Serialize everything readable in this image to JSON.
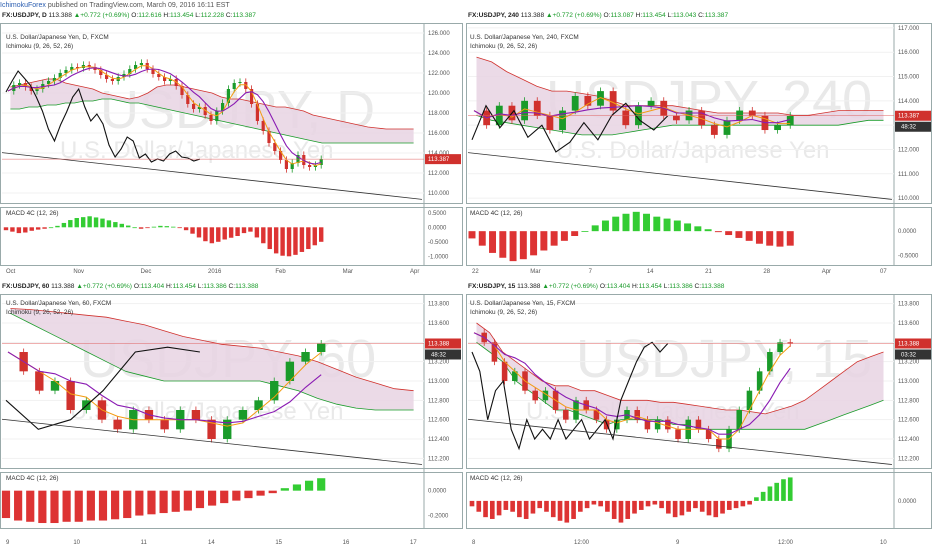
{
  "header": {
    "author": "IchimokuForex",
    "published_text": "published on TradingView.com, March 09, 2016 16:11 EST"
  },
  "colors": {
    "bull": "#1a9b2a",
    "bear": "#d0312d",
    "cloud_fill": "#e7d3e3",
    "kijun": "#8a1bb3",
    "tenkan": "#f39c12",
    "chikou": "#111111",
    "spanA": "#1a9b2a",
    "spanB": "#d0312d",
    "macd_up": "#3c3",
    "macd_down": "#d33",
    "price_line": "#e06060"
  },
  "panels": [
    {
      "id": "daily",
      "header": {
        "symbol": "FX:USDJPY, D",
        "last": "113.388",
        "change": "+0.772 (+0.69%)",
        "o_label": "O:",
        "o": "112.616",
        "h_label": "H:",
        "h": "113.454",
        "l_label": "L:",
        "l": "112.228",
        "c_label": "C:",
        "c": "113.387"
      },
      "title": "U.S. Dollar/Japanese Yen, D, FXCM",
      "indicator": "Ichimoku (9, 26, 52, 26)",
      "watermark_big": "USDJPY, D",
      "watermark_small": "U.S. Dollar/Japanese Yen",
      "macd_label": "MACD 4C (12, 26)",
      "price_ticks": [
        "126.000",
        "124.000",
        "122.000",
        "120.000",
        "118.000",
        "116.000",
        "114.000",
        "112.000",
        "110.000"
      ],
      "last_price_label": "113.387",
      "macd_ticks": [
        "0.5000",
        "0.0000",
        "-0.5000",
        "-1.0000"
      ],
      "time_ticks": [
        "Oct",
        "Nov",
        "Dec",
        "2016",
        "Feb",
        "Mar",
        "Apr"
      ]
    },
    {
      "id": "h4",
      "header": {
        "symbol": "FX:USDJPY, 240",
        "last": "113.388",
        "change": "+0.772 (+0.69%)",
        "o_label": "O:",
        "o": "113.087",
        "h_label": "H:",
        "h": "113.454",
        "l_label": "L:",
        "l": "113.043",
        "c_label": "C:",
        "c": "113.387"
      },
      "title": "U.S. Dollar/Japanese Yen, 240, FXCM",
      "indicator": "Ichimoku (9, 26, 52, 26)",
      "watermark_big": "USDJPY, 240",
      "watermark_small": "U.S. Dollar/Japanese Yen",
      "macd_label": "MACD 4C (12, 26)",
      "price_ticks": [
        "117.000",
        "116.000",
        "115.000",
        "114.000",
        "113.000",
        "112.000",
        "111.000",
        "110.000"
      ],
      "last_price_label": "113.387",
      "countdown_label": "48:32",
      "macd_ticks": [
        "0.0000",
        "-0.5000"
      ],
      "time_ticks": [
        "22",
        "Mar",
        "7",
        "14",
        "21",
        "28",
        "Apr",
        "07"
      ]
    },
    {
      "id": "h1",
      "header": {
        "symbol": "FX:USDJPY, 60",
        "last": "113.388",
        "change": "+0.772 (+0.69%)",
        "o_label": "O:",
        "o": "113.404",
        "h_label": "H:",
        "h": "113.454",
        "l_label": "L:",
        "l": "113.386",
        "c_label": "C:",
        "c": "113.388"
      },
      "title": "U.S. Dollar/Japanese Yen, 60, FXCM",
      "indicator": "Ichimoku (9, 26, 52, 26)",
      "watermark_big": "USDJPY, 60",
      "watermark_small": "U.S. Dollar/Japanese Yen",
      "macd_label": "MACD 4C (12, 26)",
      "price_ticks": [
        "113.800",
        "113.600",
        "113.400",
        "113.200",
        "113.000",
        "112.800",
        "112.600",
        "112.400",
        "112.200"
      ],
      "last_price_label": "113.388",
      "countdown_label": "48:32",
      "macd_ticks": [
        "0.0000",
        "-0.2000"
      ],
      "time_ticks": [
        "9",
        "10",
        "11",
        "14",
        "15",
        "16",
        "17"
      ]
    },
    {
      "id": "m15",
      "header": {
        "symbol": "FX:USDJPY, 15",
        "last": "113.388",
        "change": "+0.772 (+0.69%)",
        "o_label": "O:",
        "o": "113.404",
        "h_label": "H:",
        "h": "113.454",
        "l_label": "L:",
        "l": "113.386",
        "c_label": "C:",
        "c": "113.388"
      },
      "title": "U.S. Dollar/Japanese Yen, 15, FXCM",
      "indicator": "Ichimoku (9, 26, 52, 26)",
      "watermark_big": "USDJPY, 15",
      "watermark_small": "U.S. Dollar/Japanese Yen",
      "macd_label": "MACD 4C (12, 26)",
      "price_ticks": [
        "113.800",
        "113.600",
        "113.400",
        "113.200",
        "113.000",
        "112.800",
        "112.600",
        "112.400",
        "112.200"
      ],
      "last_price_label": "113.388",
      "countdown_label": "03:32",
      "macd_ticks": [
        "0.0000"
      ],
      "time_ticks": [
        "8",
        "12:00",
        "9",
        "12:00",
        "10"
      ]
    }
  ],
  "chart_data": [
    {
      "type": "candlestick",
      "title": "U.S. Dollar/Japanese Yen, D, FXCM",
      "ylim": [
        109,
        127
      ],
      "close_path": [
        120.2,
        120.8,
        121.0,
        120.6,
        120.2,
        120.4,
        120.9,
        121.2,
        121.5,
        122.0,
        122.3,
        122.6,
        122.5,
        122.8,
        122.6,
        122.3,
        121.8,
        121.4,
        121.2,
        121.6,
        121.9,
        122.4,
        122.8,
        123.0,
        122.4,
        121.9,
        121.6,
        121.2,
        121.4,
        120.7,
        119.8,
        118.9,
        118.4,
        118.6,
        117.8,
        117.2,
        118.2,
        119.0,
        120.4,
        121.0,
        121.1,
        120.4,
        118.9,
        117.2,
        116.2,
        115.0,
        114.2,
        113.3,
        112.4,
        113.0,
        113.8,
        112.8,
        112.6,
        112.8,
        113.387
      ],
      "cloud_top": [
        120.6,
        120.8,
        121.0,
        121.2,
        121.4,
        121.4,
        121.0,
        120.8,
        120.6,
        120.4,
        120.0,
        119.8,
        119.6,
        119.4,
        119.6,
        120.0,
        120.6,
        120.8,
        120.8,
        120.6,
        120.4,
        120.2,
        120.0,
        119.6,
        119.4,
        119.4,
        119.2,
        119.0,
        118.8,
        118.6,
        118.6,
        118.4,
        118.2,
        117.8,
        117.6,
        117.4,
        117.2,
        117.0,
        116.8,
        116.6,
        116.5,
        116.4,
        116.4,
        116.4,
        116.4
      ],
      "cloud_bottom": [
        118.4,
        118.4,
        118.6,
        118.6,
        118.8,
        118.8,
        119.0,
        119.0,
        119.2,
        119.2,
        119.4,
        119.4,
        119.2,
        119.0,
        119.0,
        118.8,
        118.6,
        118.4,
        118.2,
        118.0,
        117.8,
        117.6,
        117.4,
        117.2,
        117.0,
        116.8,
        116.6,
        116.4,
        116.2,
        116.0,
        115.8,
        115.6,
        115.4,
        115.2,
        115.0,
        115.0,
        115.0,
        115.0,
        115.0,
        115.0,
        115.0,
        115.0,
        115.0,
        115.0,
        115.0
      ],
      "chikou": [
        120.1,
        121.2,
        122.2,
        121.5,
        120.8,
        119.6,
        118.2,
        116.4,
        115.2,
        116.8,
        118.1,
        119.6,
        120.4,
        118.6,
        117.2,
        117.9,
        116.9,
        114.8,
        113.6,
        114.4,
        115.6,
        115.2,
        113.5,
        113.9,
        113.1,
        113.4,
        113.2,
        113.9,
        114.2,
        113.6,
        113.5,
        113.2,
        113.387
      ],
      "macd": [
        -0.1,
        -0.15,
        -0.2,
        -0.18,
        -0.12,
        -0.08,
        -0.05,
        0.0,
        0.05,
        0.15,
        0.25,
        0.32,
        0.35,
        0.38,
        0.34,
        0.3,
        0.24,
        0.18,
        0.12,
        0.06,
        0.0,
        -0.05,
        -0.02,
        0.02,
        0.05,
        0.04,
        0.02,
        -0.02,
        -0.1,
        -0.22,
        -0.35,
        -0.48,
        -0.55,
        -0.5,
        -0.42,
        -0.36,
        -0.3,
        -0.2,
        -0.15,
        -0.35,
        -0.55,
        -0.75,
        -0.9,
        -0.98,
        -1.0,
        -0.95,
        -0.85,
        -0.75,
        -0.62,
        -0.5
      ],
      "macd_ylim": [
        -1.3,
        0.7
      ],
      "last": 113.387
    },
    {
      "type": "candlestick",
      "title": "U.S. Dollar/Japanese Yen, 240, FXCM",
      "ylim": [
        109.8,
        117.2
      ],
      "close_path": [
        113.6,
        113.0,
        113.8,
        113.2,
        114.0,
        113.4,
        112.8,
        113.6,
        114.2,
        113.8,
        114.4,
        113.6,
        113.0,
        113.8,
        114.0,
        113.4,
        113.2,
        113.6,
        113.0,
        112.6,
        113.2,
        113.6,
        113.4,
        112.8,
        113.0,
        113.387
      ],
      "cloud_top": [
        115.8,
        115.6,
        115.2,
        114.9,
        114.6,
        114.4,
        114.4,
        114.3,
        114.2,
        114.0,
        113.8,
        113.8,
        113.8,
        113.8,
        113.7,
        113.6,
        113.5,
        113.5,
        113.5,
        113.5,
        113.5,
        113.4,
        113.4,
        113.5,
        113.6,
        113.6,
        113.6,
        113.6
      ],
      "cloud_bottom": [
        113.4,
        113.2,
        113.1,
        113.0,
        112.9,
        112.8,
        112.7,
        112.6,
        112.6,
        112.6,
        112.7,
        112.8,
        112.9,
        113.0,
        113.0,
        113.0,
        113.0,
        113.0,
        113.0,
        113.0,
        113.0,
        113.0,
        113.0,
        113.0,
        113.0,
        113.1,
        113.2,
        113.2
      ],
      "chikou": [
        112.4,
        113.8,
        112.9,
        113.6,
        112.5,
        113.0,
        111.9,
        112.3,
        113.1,
        112.4,
        113.4,
        113.9,
        113.2,
        112.8,
        113.387
      ],
      "macd": [
        -0.15,
        -0.3,
        -0.45,
        -0.55,
        -0.62,
        -0.58,
        -0.5,
        -0.4,
        -0.3,
        -0.2,
        -0.1,
        0.0,
        0.12,
        0.22,
        0.3,
        0.36,
        0.4,
        0.36,
        0.3,
        0.26,
        0.22,
        0.16,
        0.1,
        0.04,
        -0.02,
        -0.08,
        -0.14,
        -0.2,
        -0.26,
        -0.3,
        -0.32,
        -0.3
      ],
      "macd_ylim": [
        -0.7,
        0.5
      ],
      "last": 113.387
    },
    {
      "type": "candlestick",
      "title": "U.S. Dollar/Japanese Yen, 60, FXCM",
      "ylim": [
        112.1,
        113.9
      ],
      "close_path": [
        113.3,
        113.1,
        112.9,
        113.0,
        112.7,
        112.8,
        112.6,
        112.5,
        112.7,
        112.6,
        112.5,
        112.7,
        112.6,
        112.4,
        112.6,
        112.7,
        112.8,
        113.0,
        113.2,
        113.3,
        113.388
      ],
      "cloud_top": [
        113.75,
        113.74,
        113.72,
        113.7,
        113.68,
        113.66,
        113.62,
        113.58,
        113.52,
        113.46,
        113.42,
        113.38,
        113.36,
        113.34,
        113.3,
        113.26,
        113.2,
        113.12,
        113.04,
        112.98,
        112.92,
        112.9
      ],
      "cloud_bottom": [
        113.7,
        113.6,
        113.5,
        113.4,
        113.3,
        113.2,
        113.1,
        113.05,
        113.0,
        113.0,
        113.0,
        113.0,
        113.0,
        113.0,
        112.95,
        112.9,
        112.82,
        112.76,
        112.72,
        112.7,
        112.7,
        112.7
      ],
      "chikou": [
        112.8,
        112.5,
        112.6,
        112.9,
        113.3,
        113.35,
        113.3
      ],
      "macd": [
        -0.22,
        -0.24,
        -0.25,
        -0.26,
        -0.26,
        -0.25,
        -0.25,
        -0.24,
        -0.24,
        -0.23,
        -0.22,
        -0.2,
        -0.19,
        -0.18,
        -0.17,
        -0.16,
        -0.14,
        -0.12,
        -0.1,
        -0.08,
        -0.06,
        -0.04,
        -0.02,
        0.02,
        0.05,
        0.08,
        0.1
      ],
      "macd_ylim": [
        -0.3,
        0.15
      ],
      "last": 113.388
    },
    {
      "type": "candlestick",
      "title": "U.S. Dollar/Japanese Yen, 15, FXCM",
      "ylim": [
        112.1,
        113.9
      ],
      "close_path": [
        113.5,
        113.4,
        113.2,
        113.0,
        113.1,
        112.9,
        112.8,
        112.9,
        112.7,
        112.6,
        112.8,
        112.7,
        112.6,
        112.5,
        112.6,
        112.7,
        112.6,
        112.5,
        112.6,
        112.5,
        112.4,
        112.6,
        112.5,
        112.4,
        112.3,
        112.5,
        112.7,
        112.9,
        113.1,
        113.3,
        113.4,
        113.388
      ],
      "cloud_top": [
        113.6,
        113.5,
        113.3,
        113.2,
        113.1,
        113.0,
        112.95,
        112.95,
        112.9,
        112.9,
        112.85,
        112.8,
        112.8,
        112.8,
        112.78,
        112.78,
        112.76,
        112.74,
        112.72,
        112.7,
        112.7,
        112.68,
        112.66,
        112.7,
        112.74,
        112.8,
        112.9,
        113.0,
        113.1,
        113.2,
        113.25,
        113.3
      ],
      "cloud_bottom": [
        113.4,
        113.3,
        113.2,
        113.0,
        112.9,
        112.8,
        112.7,
        112.7,
        112.65,
        112.6,
        112.55,
        112.6,
        112.6,
        112.6,
        112.6,
        112.55,
        112.55,
        112.5,
        112.5,
        112.5,
        112.5,
        112.5,
        112.5,
        112.5,
        112.5,
        112.5,
        112.55,
        112.6,
        112.65,
        112.7,
        112.75,
        112.8
      ],
      "chikou": [
        113.3,
        113.1,
        112.6,
        112.9,
        113.0,
        112.5,
        112.3,
        112.6,
        112.4,
        112.5,
        112.4,
        112.6,
        112.4,
        112.5,
        112.6,
        112.4,
        112.5,
        112.6,
        112.4,
        112.8,
        113.0,
        113.2,
        113.35,
        113.4,
        113.3,
        113.388
      ],
      "macd": [
        -0.03,
        -0.06,
        -0.09,
        -0.1,
        -0.08,
        -0.05,
        -0.06,
        -0.09,
        -0.1,
        -0.07,
        -0.04,
        -0.06,
        -0.09,
        -0.11,
        -0.12,
        -0.1,
        -0.06,
        -0.04,
        -0.02,
        -0.03,
        -0.06,
        -0.1,
        -0.12,
        -0.1,
        -0.07,
        -0.05,
        -0.03,
        -0.02,
        -0.04,
        -0.07,
        -0.09,
        -0.08,
        -0.06,
        -0.04,
        -0.06,
        -0.08,
        -0.09,
        -0.07,
        -0.05,
        -0.04,
        -0.03,
        -0.02,
        0.02,
        0.05,
        0.08,
        0.1,
        0.12,
        0.13
      ],
      "macd_ylim": [
        -0.15,
        0.16
      ],
      "last": 113.388
    }
  ]
}
